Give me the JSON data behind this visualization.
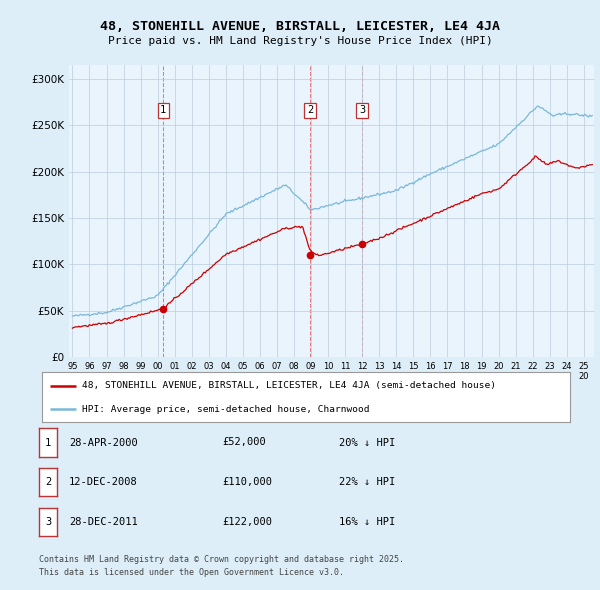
{
  "title1": "48, STONEHILL AVENUE, BIRSTALL, LEICESTER, LE4 4JA",
  "title2": "Price paid vs. HM Land Registry's House Price Index (HPI)",
  "ylabel_ticks": [
    "£0",
    "£50K",
    "£100K",
    "£150K",
    "£200K",
    "£250K",
    "£300K"
  ],
  "ytick_vals": [
    0,
    50000,
    100000,
    150000,
    200000,
    250000,
    300000
  ],
  "ylim": [
    0,
    315000
  ],
  "xlim_start": 1994.8,
  "xlim_end": 2025.6,
  "sale_dates": [
    2000.33,
    2008.95,
    2011.99
  ],
  "sale_prices": [
    52000,
    110000,
    122000
  ],
  "sale_labels": [
    "1",
    "2",
    "3"
  ],
  "legend_red": "48, STONEHILL AVENUE, BIRSTALL, LEICESTER, LE4 4JA (semi-detached house)",
  "legend_blue": "HPI: Average price, semi-detached house, Charnwood",
  "table_rows": [
    [
      "1",
      "28-APR-2000",
      "£52,000",
      "20% ↓ HPI"
    ],
    [
      "2",
      "12-DEC-2008",
      "£110,000",
      "22% ↓ HPI"
    ],
    [
      "3",
      "28-DEC-2011",
      "£122,000",
      "16% ↓ HPI"
    ]
  ],
  "footnote1": "Contains HM Land Registry data © Crown copyright and database right 2025.",
  "footnote2": "This data is licensed under the Open Government Licence v3.0.",
  "bg_color": "#ddeef8",
  "plot_bg": "#eaf4fc",
  "red_color": "#cc0000",
  "blue_color": "#7ab8d9",
  "grid_color": "#bbccdd",
  "dashed_color": "#dd6666"
}
